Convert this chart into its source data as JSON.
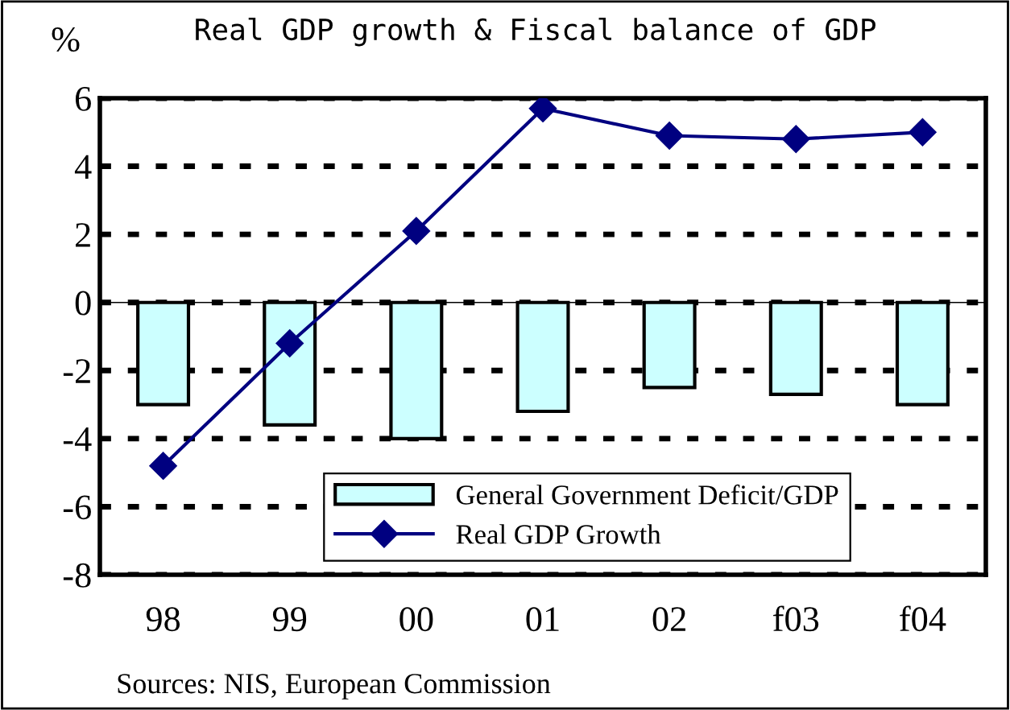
{
  "chart_data": {
    "type": "bar",
    "title": "Real GDP growth & Fiscal balance of GDP",
    "ylabel": "%",
    "categories": [
      "98",
      "99",
      "00",
      "01",
      "02",
      "f03",
      "f04"
    ],
    "series": [
      {
        "name": "General Government Deficit/GDP",
        "color": "#ccffff",
        "values": [
          -3.0,
          -3.6,
          -4.0,
          -3.2,
          -2.5,
          -2.7,
          -3.0
        ]
      },
      {
        "name": "Real GDP Growth",
        "type": "line",
        "color": "#000080",
        "marker": "diamond",
        "values": [
          -4.8,
          -1.2,
          2.1,
          5.7,
          4.9,
          4.8,
          5.0
        ]
      }
    ],
    "ylim": [
      -8,
      6
    ],
    "yticks": [
      -8,
      -6,
      -4,
      -2,
      0,
      2,
      4,
      6
    ],
    "grid": "y",
    "legend": "bottom right",
    "annotations": [
      "Sources: NIS, European Commission"
    ]
  }
}
